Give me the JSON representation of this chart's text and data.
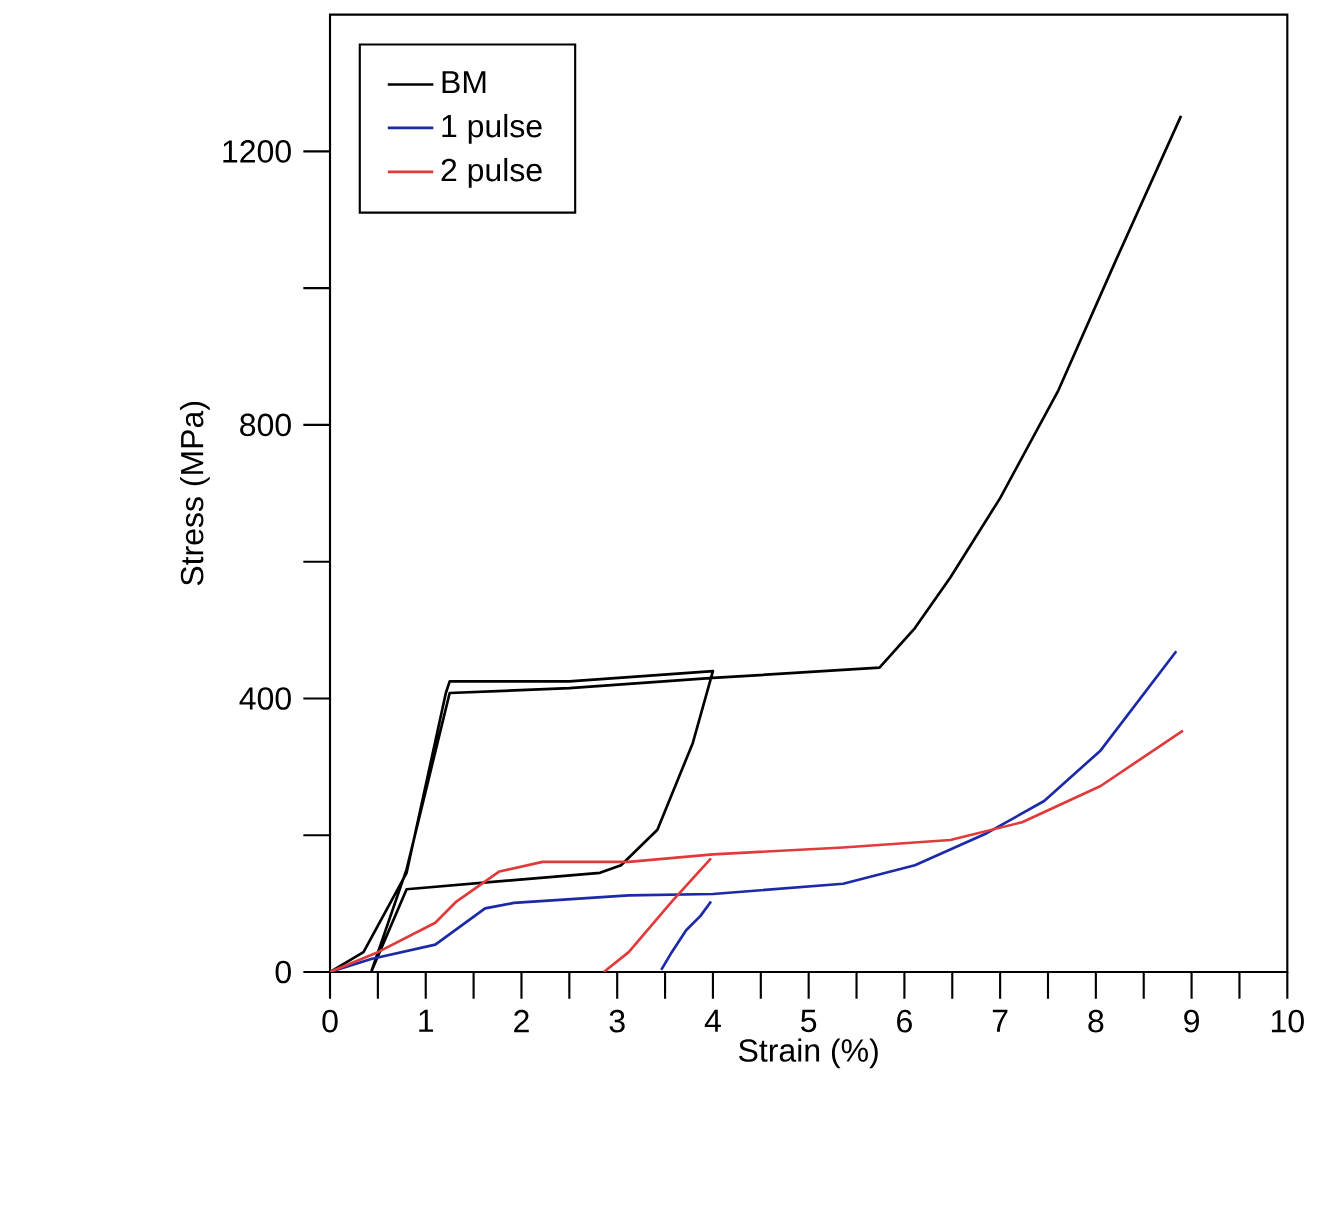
{
  "chart_data": {
    "type": "line",
    "xlabel": "Strain (%)",
    "ylabel": "Stress (MPa)",
    "xlim": [
      0,
      10
    ],
    "ylim": [
      0,
      1400
    ],
    "xticks": [
      0,
      {
        "value": 0.5,
        "label": null
      },
      1,
      {
        "value": 1.5,
        "label": null
      },
      2,
      {
        "value": 2.5,
        "label": null
      },
      3,
      {
        "value": 3.5,
        "label": null
      },
      4,
      {
        "value": 4.5,
        "label": null
      },
      5,
      {
        "value": 5.5,
        "label": null
      },
      6,
      {
        "value": 6.5,
        "label": null
      },
      7,
      {
        "value": 7.5,
        "label": null
      },
      8,
      {
        "value": 8.5,
        "label": null
      },
      9,
      {
        "value": 9.5,
        "label": null
      },
      10
    ],
    "yticks": [
      0,
      {
        "value": 200,
        "label": null
      },
      400,
      {
        "value": 600,
        "label": null
      },
      800,
      {
        "value": 1000,
        "label": null
      },
      1200
    ],
    "legend": "top left",
    "grid": false,
    "series": [
      {
        "name": "BM",
        "color": "#000000",
        "x": [
          0,
          0.35,
          0.8,
          1.21,
          1.25,
          2.5,
          4.0,
          3.79,
          3.42,
          3.04,
          2.82,
          0.8,
          0.43,
          0.8,
          1.25,
          2.5,
          4.0,
          5.74,
          6.11,
          6.48,
          7.0,
          7.61,
          8.21,
          8.89
        ],
        "values": [
          0,
          29,
          145,
          408,
          425,
          425,
          440,
          335,
          208,
          156,
          145,
          121,
          0,
          150,
          408,
          415,
          430,
          445,
          503,
          577,
          693,
          851,
          1041,
          1252
        ]
      },
      {
        "name": "1 pulse",
        "color": "#1c2aa8",
        "x": [
          0,
          0.43,
          1.1,
          1.62,
          1.92,
          3.12,
          4.0,
          5.36,
          6.11,
          6.86,
          7.46,
          8.05,
          8.84,
          null,
          3.46,
          3.57,
          3.72,
          3.87,
          3.98
        ],
        "values": [
          0,
          19,
          40,
          93,
          101,
          112,
          114,
          129,
          156,
          203,
          250,
          324,
          469,
          null,
          3,
          29,
          61,
          82,
          103
        ]
      },
      {
        "name": "2 pulse",
        "color": "#e03a3a",
        "x": [
          0,
          0.5,
          1.1,
          1.32,
          1.77,
          2.22,
          3.12,
          4.0,
          5.36,
          6.48,
          7.23,
          8.05,
          8.91,
          null,
          2.86,
          3.12,
          3.57,
          3.98
        ],
        "values": [
          0,
          29,
          72,
          103,
          147,
          161,
          161,
          172,
          182,
          193,
          219,
          272,
          353,
          null,
          0,
          29,
          103,
          166
        ]
      }
    ]
  }
}
